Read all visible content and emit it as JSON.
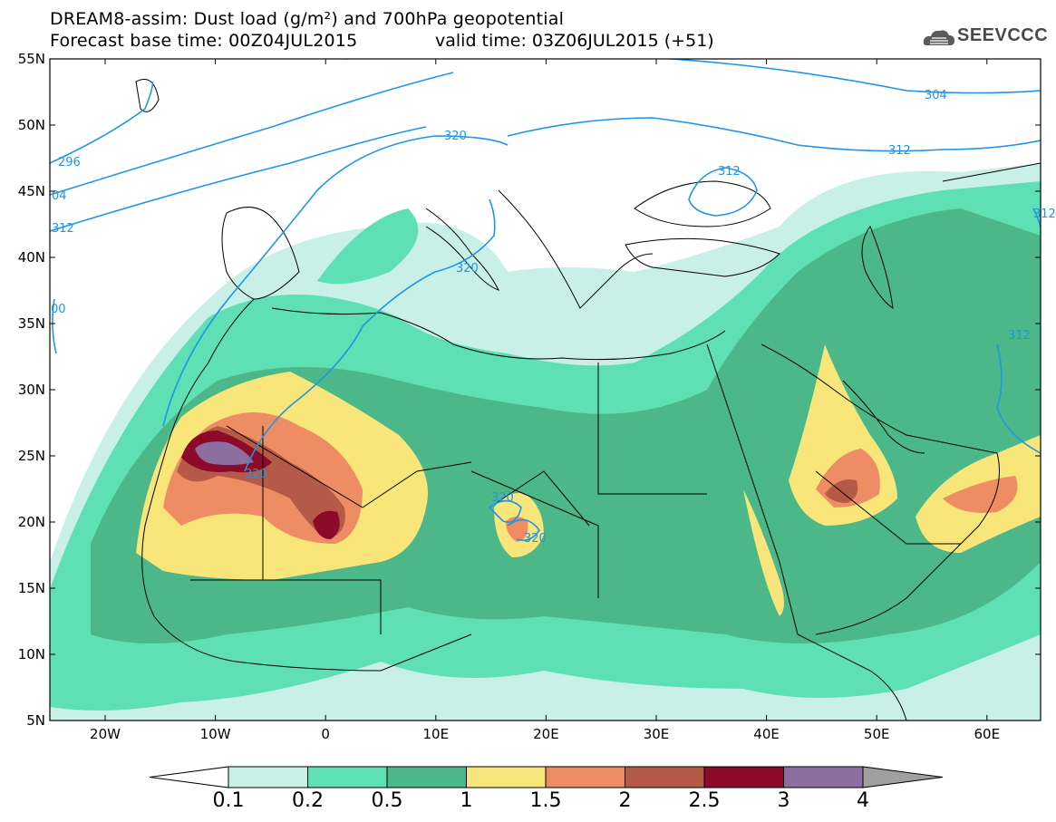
{
  "title": {
    "line1": "DREAM8-assim: Dust load (g/m²) and 700hPa geopotential",
    "line2": "Forecast base time: 00Z04JUL2015",
    "line3": "valid time: 03Z06JUL2015 (+51)"
  },
  "logo": {
    "text": "SEEVCCC",
    "icon": "cloud-icon"
  },
  "axes": {
    "lat_labels": [
      "55N",
      "50N",
      "45N",
      "40N",
      "35N",
      "30N",
      "25N",
      "20N",
      "15N",
      "10N",
      "5N"
    ],
    "lon_labels": [
      "20W",
      "10W",
      "0",
      "10E",
      "20E",
      "30E",
      "40E",
      "50E",
      "60E"
    ]
  },
  "contours": {
    "labels": [
      "304",
      "312",
      "312",
      "296",
      "04",
      "312",
      "320",
      "320",
      "312",
      "320",
      "320",
      "320",
      "312",
      "00"
    ]
  },
  "colorbar": {
    "labels": [
      "0.1",
      "0.2",
      "0.5",
      "1",
      "1.5",
      "2",
      "2.5",
      "3",
      "4"
    ],
    "colors": [
      "#c8f0e6",
      "#5ee0b4",
      "#4cb88a",
      "#f8e67a",
      "#ee8c64",
      "#b45a46",
      "#8c0a2a",
      "#8c6ea0",
      "#a0a0a0"
    ]
  },
  "colors": {
    "land_line": "#000000",
    "contour": "#1e96e6",
    "dust_0_1": "#c8f0e6",
    "dust_0_2": "#5ee0b4",
    "dust_0_5": "#4cb88a",
    "dust_1": "#f8e67a",
    "dust_1_5": "#ee8c64",
    "dust_2": "#b45a46",
    "dust_2_5": "#8c0a2a",
    "dust_3": "#8c6ea0"
  }
}
